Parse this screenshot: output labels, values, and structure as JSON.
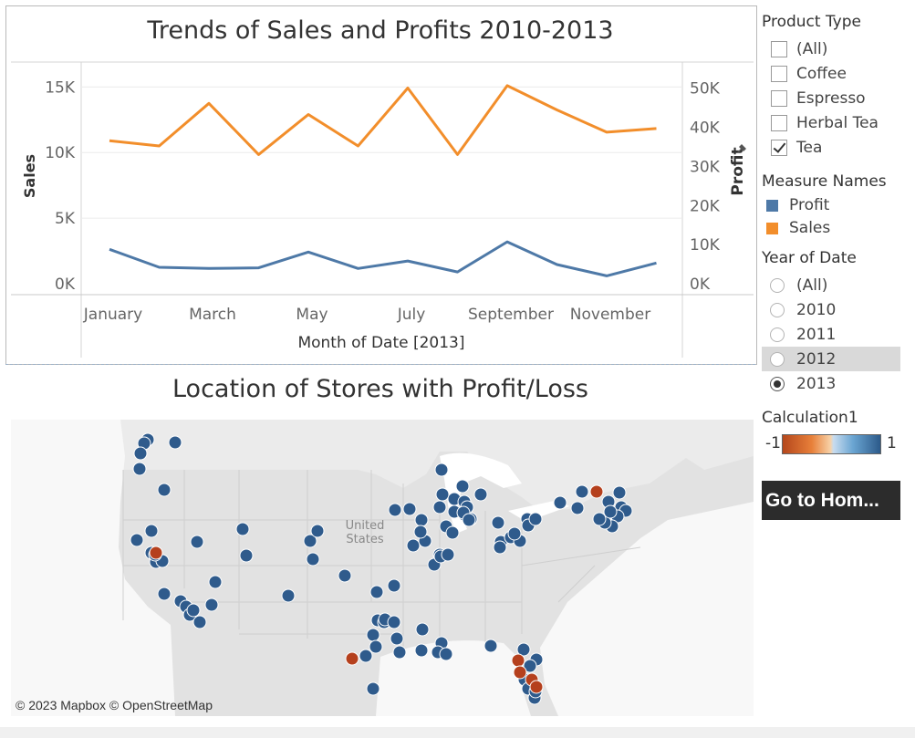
{
  "chart": {
    "title": "Trends of Sales and Profits 2010-2013",
    "xlabel": "Month of Date [2013]",
    "ylabel_left": "Sales",
    "ylabel_right": "Profit",
    "pin_icon": "pin-icon"
  },
  "chart_data": {
    "type": "line",
    "title": "Trends of Sales and Profits 2010-2013",
    "xlabel": "Month of Date [2013]",
    "ylabel": "Sales",
    "y2label": "Profit",
    "categories": [
      "January",
      "February",
      "March",
      "April",
      "May",
      "June",
      "July",
      "August",
      "September",
      "October",
      "November",
      "December"
    ],
    "x_tick_labels": [
      "January",
      "March",
      "May",
      "July",
      "September",
      "November"
    ],
    "y_left_ticks": [
      "0K",
      "5K",
      "10K",
      "15K"
    ],
    "y_right_ticks": [
      "0K",
      "10K",
      "20K",
      "30K",
      "40K",
      "50K"
    ],
    "ylim": [
      0,
      16900
    ],
    "y2lim": [
      0,
      56700
    ],
    "series": [
      {
        "name": "Sales",
        "axis": "left",
        "color": "#f28e2b",
        "values": [
          10900,
          10500,
          13750,
          9850,
          12900,
          10500,
          14920,
          9850,
          15100,
          13250,
          11550,
          11830
        ]
      },
      {
        "name": "Profit",
        "axis": "right",
        "color": "#4e79a7",
        "values": [
          8800,
          4200,
          3900,
          4050,
          8100,
          3900,
          5800,
          3000,
          10700,
          4900,
          2000,
          5300
        ]
      }
    ],
    "grid": "horizontal",
    "legend": "sidebar"
  },
  "map": {
    "title": "Location of Stores with Profit/Loss",
    "label_country": "United",
    "label_country2": "States",
    "credit": "© 2023 Mapbox © OpenStreetMap"
  },
  "filters": {
    "product_type": {
      "title": "Product Type",
      "options": [
        {
          "label": "(All)",
          "checked": false
        },
        {
          "label": "Coffee",
          "checked": false
        },
        {
          "label": "Espresso",
          "checked": false
        },
        {
          "label": "Herbal Tea",
          "checked": false
        },
        {
          "label": "Tea",
          "checked": true
        }
      ]
    },
    "measure_names": {
      "title": "Measure Names",
      "items": [
        {
          "label": "Profit",
          "color": "#4e79a7"
        },
        {
          "label": "Sales",
          "color": "#f28e2b"
        }
      ]
    },
    "year_of_date": {
      "title": "Year of Date",
      "options": [
        {
          "label": "(All)",
          "selected": false
        },
        {
          "label": "2010",
          "selected": false
        },
        {
          "label": "2011",
          "selected": false
        },
        {
          "label": "2012",
          "selected": false,
          "hovered": true
        },
        {
          "label": "2013",
          "selected": true
        }
      ]
    },
    "calculation": {
      "title": "Calculation1",
      "min_label": "-1",
      "max_label": "1"
    }
  },
  "button": {
    "home_label": "Go to Hom..."
  },
  "colors": {
    "profit_marker": "#2f5b8c",
    "loss_marker": "#b5401d"
  }
}
